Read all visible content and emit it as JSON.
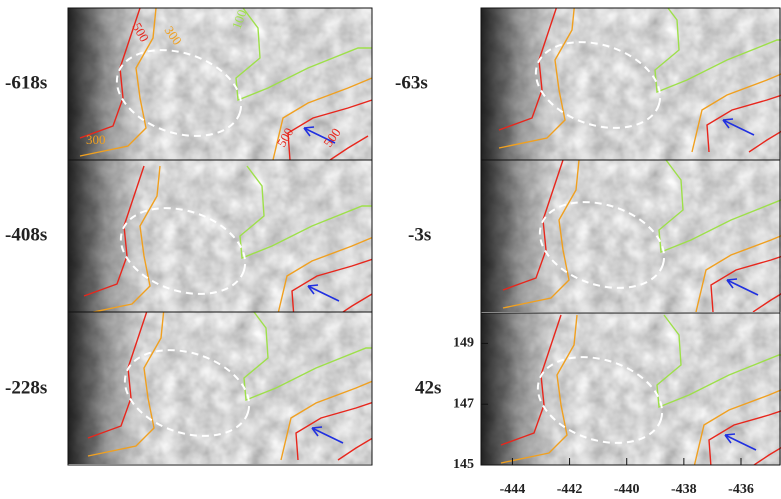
{
  "panels": [
    {
      "time": "-618s",
      "contour_labels": [
        "500",
        "300",
        "100",
        "300",
        "500",
        "500"
      ]
    },
    {
      "time": "-408s"
    },
    {
      "time": "-228s"
    },
    {
      "time": "-63s"
    },
    {
      "time": "-3s"
    },
    {
      "time": "42s"
    }
  ],
  "axes": {
    "xlim": [
      -445.1,
      -434.6
    ],
    "xticks": [
      -444,
      -442,
      -440,
      -438,
      -436
    ],
    "ylim": [
      145,
      150
    ],
    "yticks": [
      149,
      147,
      145
    ]
  }
}
